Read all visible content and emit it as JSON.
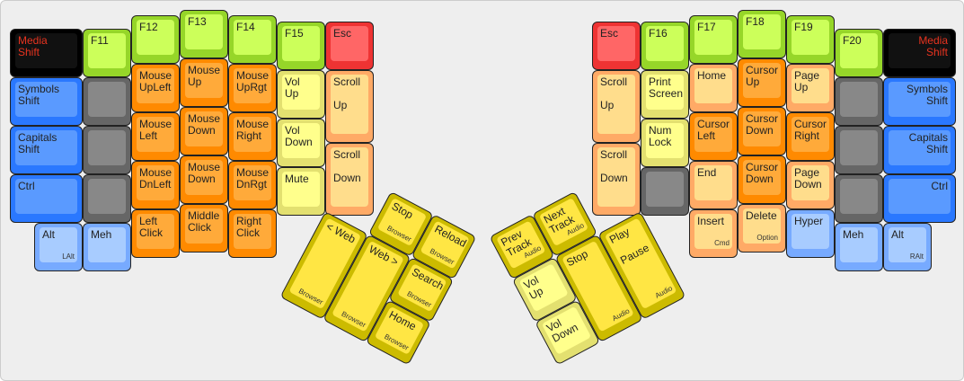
{
  "left_hand": [
    {
      "label": "Media\nShift",
      "color": "black"
    },
    {
      "label": "Symbols\nShift",
      "color": "blue"
    },
    {
      "label": "Capitals\nShift",
      "color": "blue"
    },
    {
      "label": "Ctrl",
      "color": "blue"
    },
    {
      "label": "Alt",
      "sub": "LAlt",
      "color": "lblue"
    },
    {
      "label": "F11",
      "color": "green"
    },
    {
      "label": "",
      "color": "gray"
    },
    {
      "label": "",
      "color": "gray"
    },
    {
      "label": "",
      "color": "gray"
    },
    {
      "label": "Meh",
      "color": "lblue"
    },
    {
      "label": "F12",
      "color": "green"
    },
    {
      "label": "Mouse\nUpLeft",
      "color": "orange"
    },
    {
      "label": "Mouse\nLeft",
      "color": "orange"
    },
    {
      "label": "Mouse\nDnLeft",
      "color": "orange"
    },
    {
      "label": "Left\nClick",
      "color": "orange"
    },
    {
      "label": "F13",
      "color": "green"
    },
    {
      "label": "Mouse\nUp",
      "color": "orange"
    },
    {
      "label": "Mouse\nDown",
      "color": "orange"
    },
    {
      "label": "Mouse\nDown",
      "color": "orange"
    },
    {
      "label": "Middle\nClick",
      "color": "orange"
    },
    {
      "label": "F14",
      "color": "green"
    },
    {
      "label": "Mouse\nUpRgt",
      "color": "orange"
    },
    {
      "label": "Mouse\nRight",
      "color": "orange"
    },
    {
      "label": "Mouse\nDnRgt",
      "color": "orange"
    },
    {
      "label": "Right\nClick",
      "color": "orange"
    },
    {
      "label": "F15",
      "color": "green"
    },
    {
      "label": "Vol\nUp",
      "color": "lyellow"
    },
    {
      "label": "Vol\nDown",
      "color": "lyellow"
    },
    {
      "label": "Mute",
      "color": "lyellow"
    },
    {
      "label": "Esc",
      "color": "red"
    },
    {
      "label": "Scroll\n\nUp",
      "color": "lorange"
    },
    {
      "label": "Scroll\n\nDown",
      "color": "lorange"
    }
  ],
  "right_hand": [
    {
      "label": "Esc",
      "color": "red"
    },
    {
      "label": "Scroll\n\nUp",
      "color": "lorange"
    },
    {
      "label": "Scroll\n\nDown",
      "color": "lorange"
    },
    {
      "label": "F16",
      "color": "green"
    },
    {
      "label": "Print\nScreen",
      "color": "lyellow"
    },
    {
      "label": "Num\nLock",
      "color": "lyellow"
    },
    {
      "label": "",
      "color": "gray"
    },
    {
      "label": "F17",
      "color": "green"
    },
    {
      "label": "Home",
      "color": "lorange"
    },
    {
      "label": "Cursor\nLeft",
      "color": "orange"
    },
    {
      "label": "End",
      "color": "lorange"
    },
    {
      "label": "Insert",
      "sub": "Cmd",
      "color": "lorange"
    },
    {
      "label": "F18",
      "color": "green"
    },
    {
      "label": "Cursor\nUp",
      "color": "orange"
    },
    {
      "label": "Cursor\nDown",
      "color": "orange"
    },
    {
      "label": "Cursor\nDown",
      "color": "orange"
    },
    {
      "label": "Delete",
      "sub": "Option",
      "color": "lorange"
    },
    {
      "label": "F19",
      "color": "green"
    },
    {
      "label": "Page\nUp",
      "color": "lorange"
    },
    {
      "label": "Cursor\nRight",
      "color": "orange"
    },
    {
      "label": "Page\nDown",
      "color": "lorange"
    },
    {
      "label": "Hyper",
      "color": "lblue"
    },
    {
      "label": "F20",
      "color": "green"
    },
    {
      "label": "",
      "color": "gray"
    },
    {
      "label": "",
      "color": "gray"
    },
    {
      "label": "",
      "color": "gray"
    },
    {
      "label": "Meh",
      "color": "lblue"
    },
    {
      "label": "Media\nShift",
      "color": "black"
    },
    {
      "label": "Symbols\nShift",
      "color": "blue"
    },
    {
      "label": "Capitals\nShift",
      "color": "blue"
    },
    {
      "label": "Ctrl",
      "color": "blue"
    },
    {
      "label": "Alt",
      "sub": "RAlt",
      "color": "lblue"
    }
  ],
  "left_thumb": [
    {
      "label": "Stop",
      "sub": "Browser",
      "color": "yellow"
    },
    {
      "label": "Reload",
      "sub": "Browser",
      "color": "yellow"
    },
    {
      "label": "< Web",
      "sub": "Browser",
      "color": "yellow"
    },
    {
      "label": "Web >",
      "sub": "Browser",
      "color": "yellow"
    },
    {
      "label": "Search",
      "sub": "Browser",
      "color": "yellow"
    },
    {
      "label": "Home",
      "sub": "Browser",
      "color": "yellow"
    }
  ],
  "right_thumb": [
    {
      "label": "Prev\nTrack",
      "sub": "Audio",
      "color": "yellow"
    },
    {
      "label": "Next\nTrack",
      "sub": "Audio",
      "color": "yellow"
    },
    {
      "label": "Vol\nUp",
      "color": "lyellow"
    },
    {
      "label": "Vol\nDown",
      "color": "lyellow"
    },
    {
      "label": "Stop",
      "sub": "Audio",
      "color": "yellow"
    },
    {
      "label": "Play\n\nPause",
      "sub": "Audio",
      "color": "yellow"
    }
  ]
}
